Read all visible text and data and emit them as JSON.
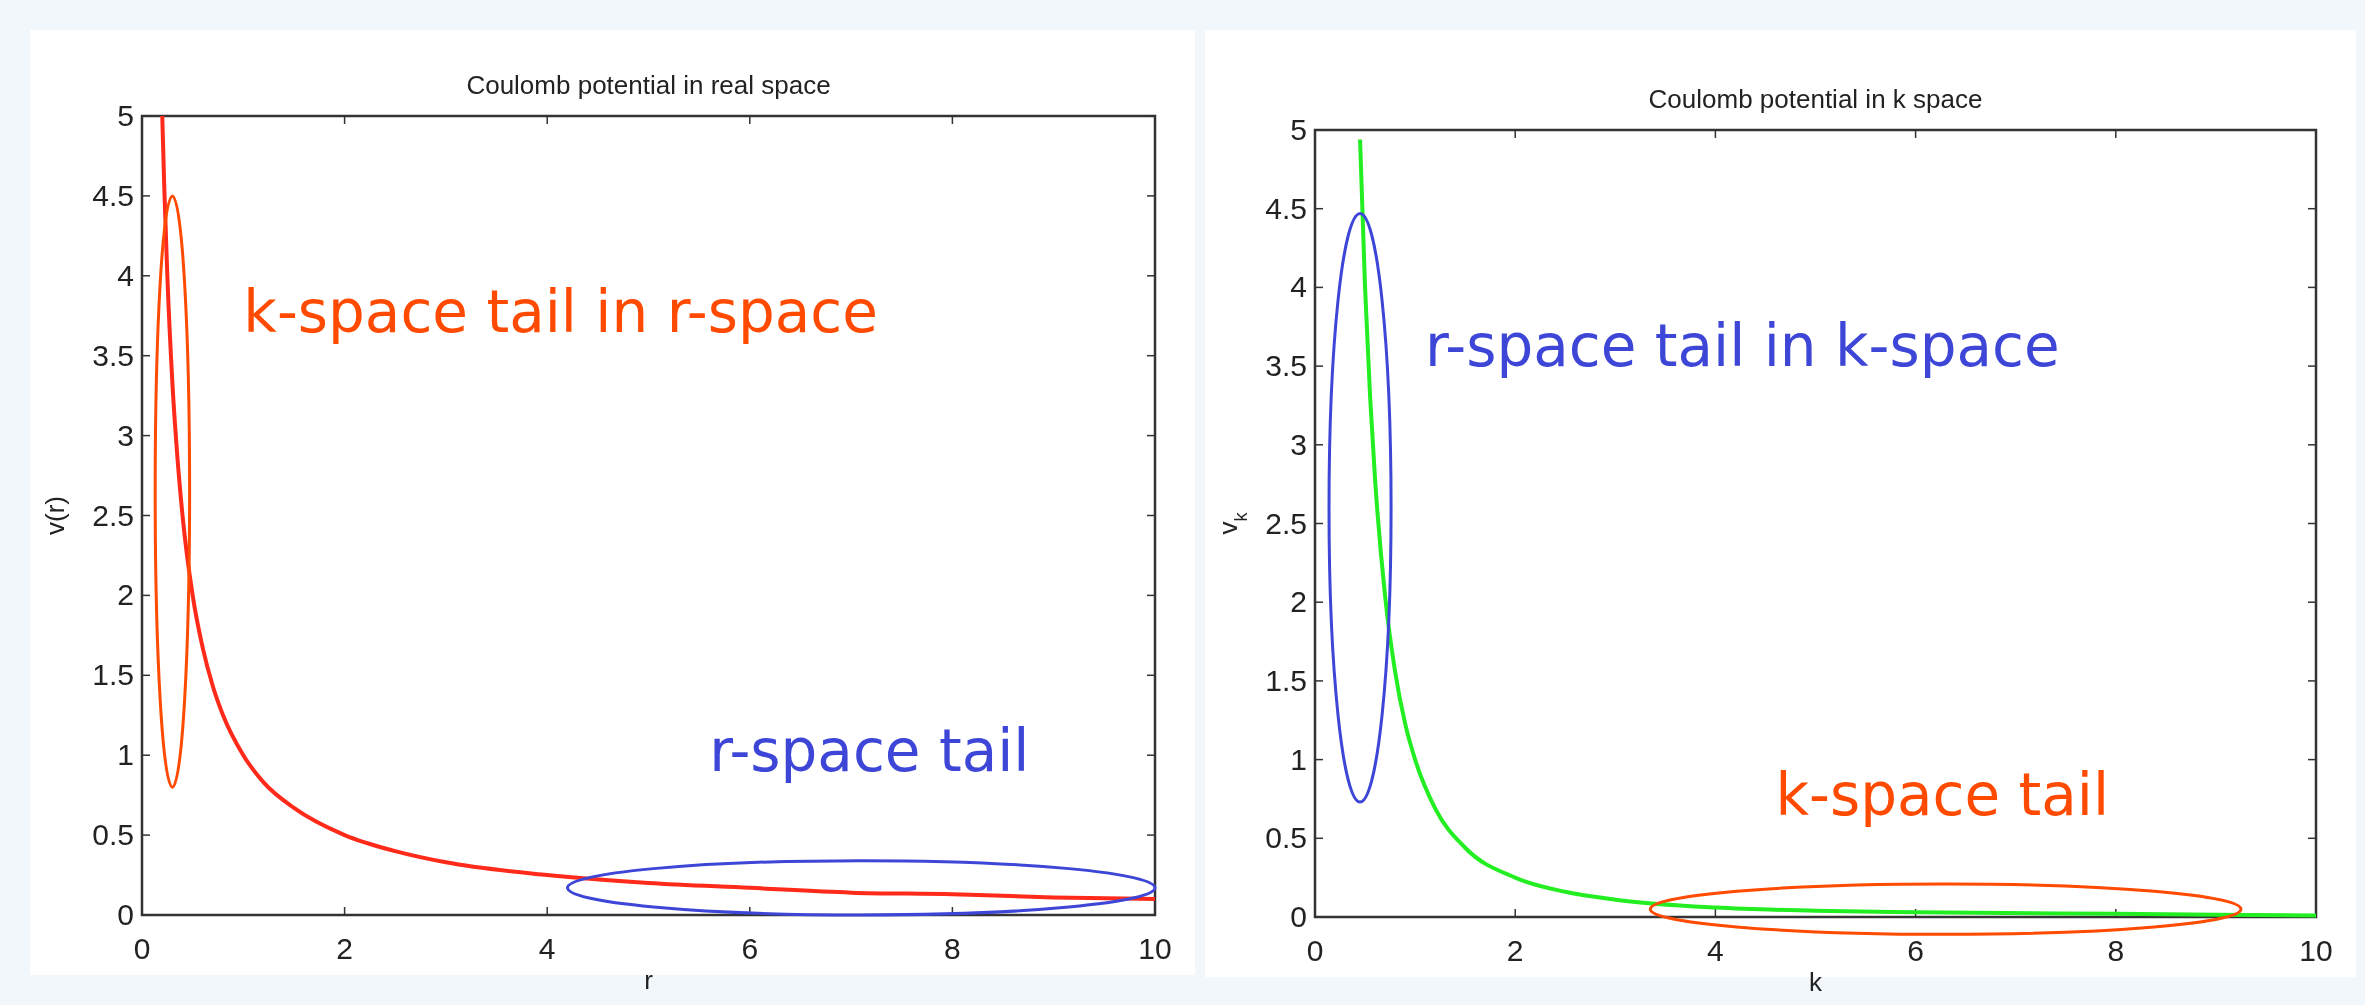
{
  "chart_data": [
    {
      "type": "line",
      "title": "Coulomb potential in real space",
      "xlabel": "r",
      "ylabel": "v(r)",
      "series": [
        {
          "color": "#ff2a1a",
          "x": [
            0.2,
            0.22,
            0.25,
            0.3,
            0.35,
            0.4,
            0.5,
            0.6,
            0.7,
            0.8,
            1,
            1.2,
            1.5,
            2,
            2.5,
            3,
            4,
            5,
            6,
            7,
            8,
            9,
            10
          ],
          "values": [
            5,
            4.55,
            4,
            3.33,
            2.86,
            2.5,
            2,
            1.67,
            1.43,
            1.25,
            1,
            0.83,
            0.67,
            0.5,
            0.4,
            0.33,
            0.25,
            0.2,
            0.17,
            0.14,
            0.13,
            0.11,
            0.1
          ]
        }
      ],
      "xlim": [
        0,
        10
      ],
      "xticks": [
        0,
        2,
        4,
        6,
        8,
        10
      ],
      "ylim": [
        0,
        5
      ],
      "yticks": [
        0,
        0.5,
        1,
        1.5,
        2,
        2.5,
        3,
        3.5,
        4,
        4.5,
        5
      ],
      "annotations": [
        "k-space tail in r-space",
        "r-space tail"
      ]
    },
    {
      "type": "line",
      "title": "Coulomb potential in k space",
      "xlabel": "k",
      "ylabel": "v$_{k}$",
      "series": [
        {
          "color": "#22ee22",
          "x": [
            0.45,
            0.5,
            0.55,
            0.6,
            0.7,
            0.8,
            0.9,
            1,
            1.2,
            1.5,
            2,
            2.5,
            3,
            4,
            5,
            6,
            8,
            10
          ],
          "values": [
            4.94,
            4,
            3.31,
            2.78,
            2.04,
            1.56,
            1.23,
            1,
            0.69,
            0.44,
            0.25,
            0.16,
            0.11,
            0.06,
            0.04,
            0.03,
            0.02,
            0.01
          ]
        }
      ],
      "xlim": [
        0,
        10
      ],
      "xticks": [
        0,
        2,
        4,
        6,
        8,
        10
      ],
      "ylim": [
        0,
        5
      ],
      "yticks": [
        0,
        0.5,
        1,
        1.5,
        2,
        2.5,
        3,
        3.5,
        4,
        4.5,
        5
      ],
      "annotations": [
        "r-space tail in k-space",
        "k-space tail"
      ]
    }
  ]
}
